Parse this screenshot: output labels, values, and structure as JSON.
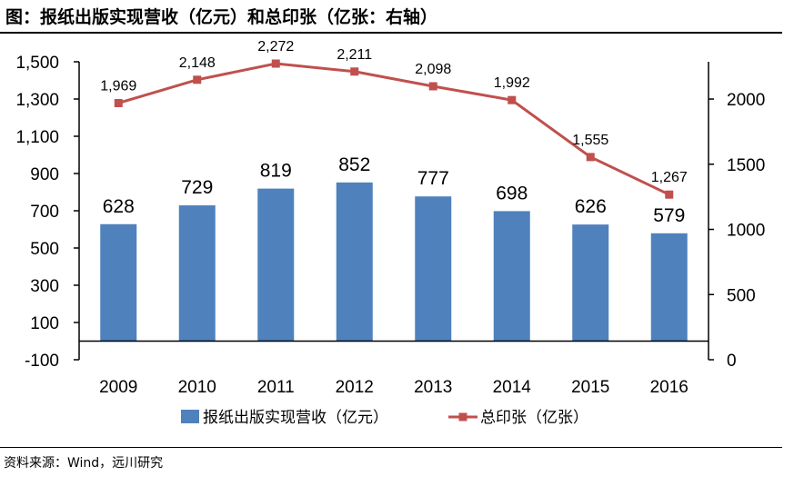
{
  "title": "图：报纸出版实现营收（亿元）和总印张（亿张：右轴）",
  "source": "资料来源：Wind，远川研究",
  "chart_data": {
    "type": "bar",
    "title": "图：报纸出版实现营收（亿元）和总印张（亿张：右轴）",
    "categories": [
      "2009",
      "2010",
      "2011",
      "2012",
      "2013",
      "2014",
      "2015",
      "2016"
    ],
    "series": [
      {
        "name": "报纸出版实现营收（亿元）",
        "type": "bar",
        "axis": "left",
        "color": "#4f81bd",
        "values": [
          628,
          729,
          819,
          852,
          777,
          698,
          626,
          579
        ],
        "labels": [
          "628",
          "729",
          "819",
          "852",
          "777",
          "698",
          "626",
          "579"
        ]
      },
      {
        "name": "总印张（亿张）",
        "type": "line",
        "axis": "right",
        "color": "#c0504d",
        "values": [
          1969,
          2148,
          2272,
          2211,
          2098,
          1992,
          1555,
          1267
        ],
        "labels": [
          "1,969",
          "2,148",
          "2,272",
          "2,211",
          "2,098",
          "1,992",
          "1,555",
          "1,267"
        ]
      }
    ],
    "y_left": {
      "range": [
        -100,
        1500
      ],
      "ticks": [
        -100,
        100,
        300,
        500,
        700,
        900,
        1100,
        1300,
        1500
      ],
      "tick_labels": [
        "-100",
        "100",
        "300",
        "500",
        "700",
        "900",
        "1,100",
        "1,300",
        "1,500"
      ]
    },
    "y_right": {
      "range": [
        0,
        2286
      ],
      "ticks": [
        0,
        500,
        1000,
        1500,
        2000
      ],
      "tick_labels": [
        "0",
        "500",
        "1000",
        "1500",
        "2000"
      ]
    },
    "grid": false,
    "legend_position": "bottom"
  }
}
